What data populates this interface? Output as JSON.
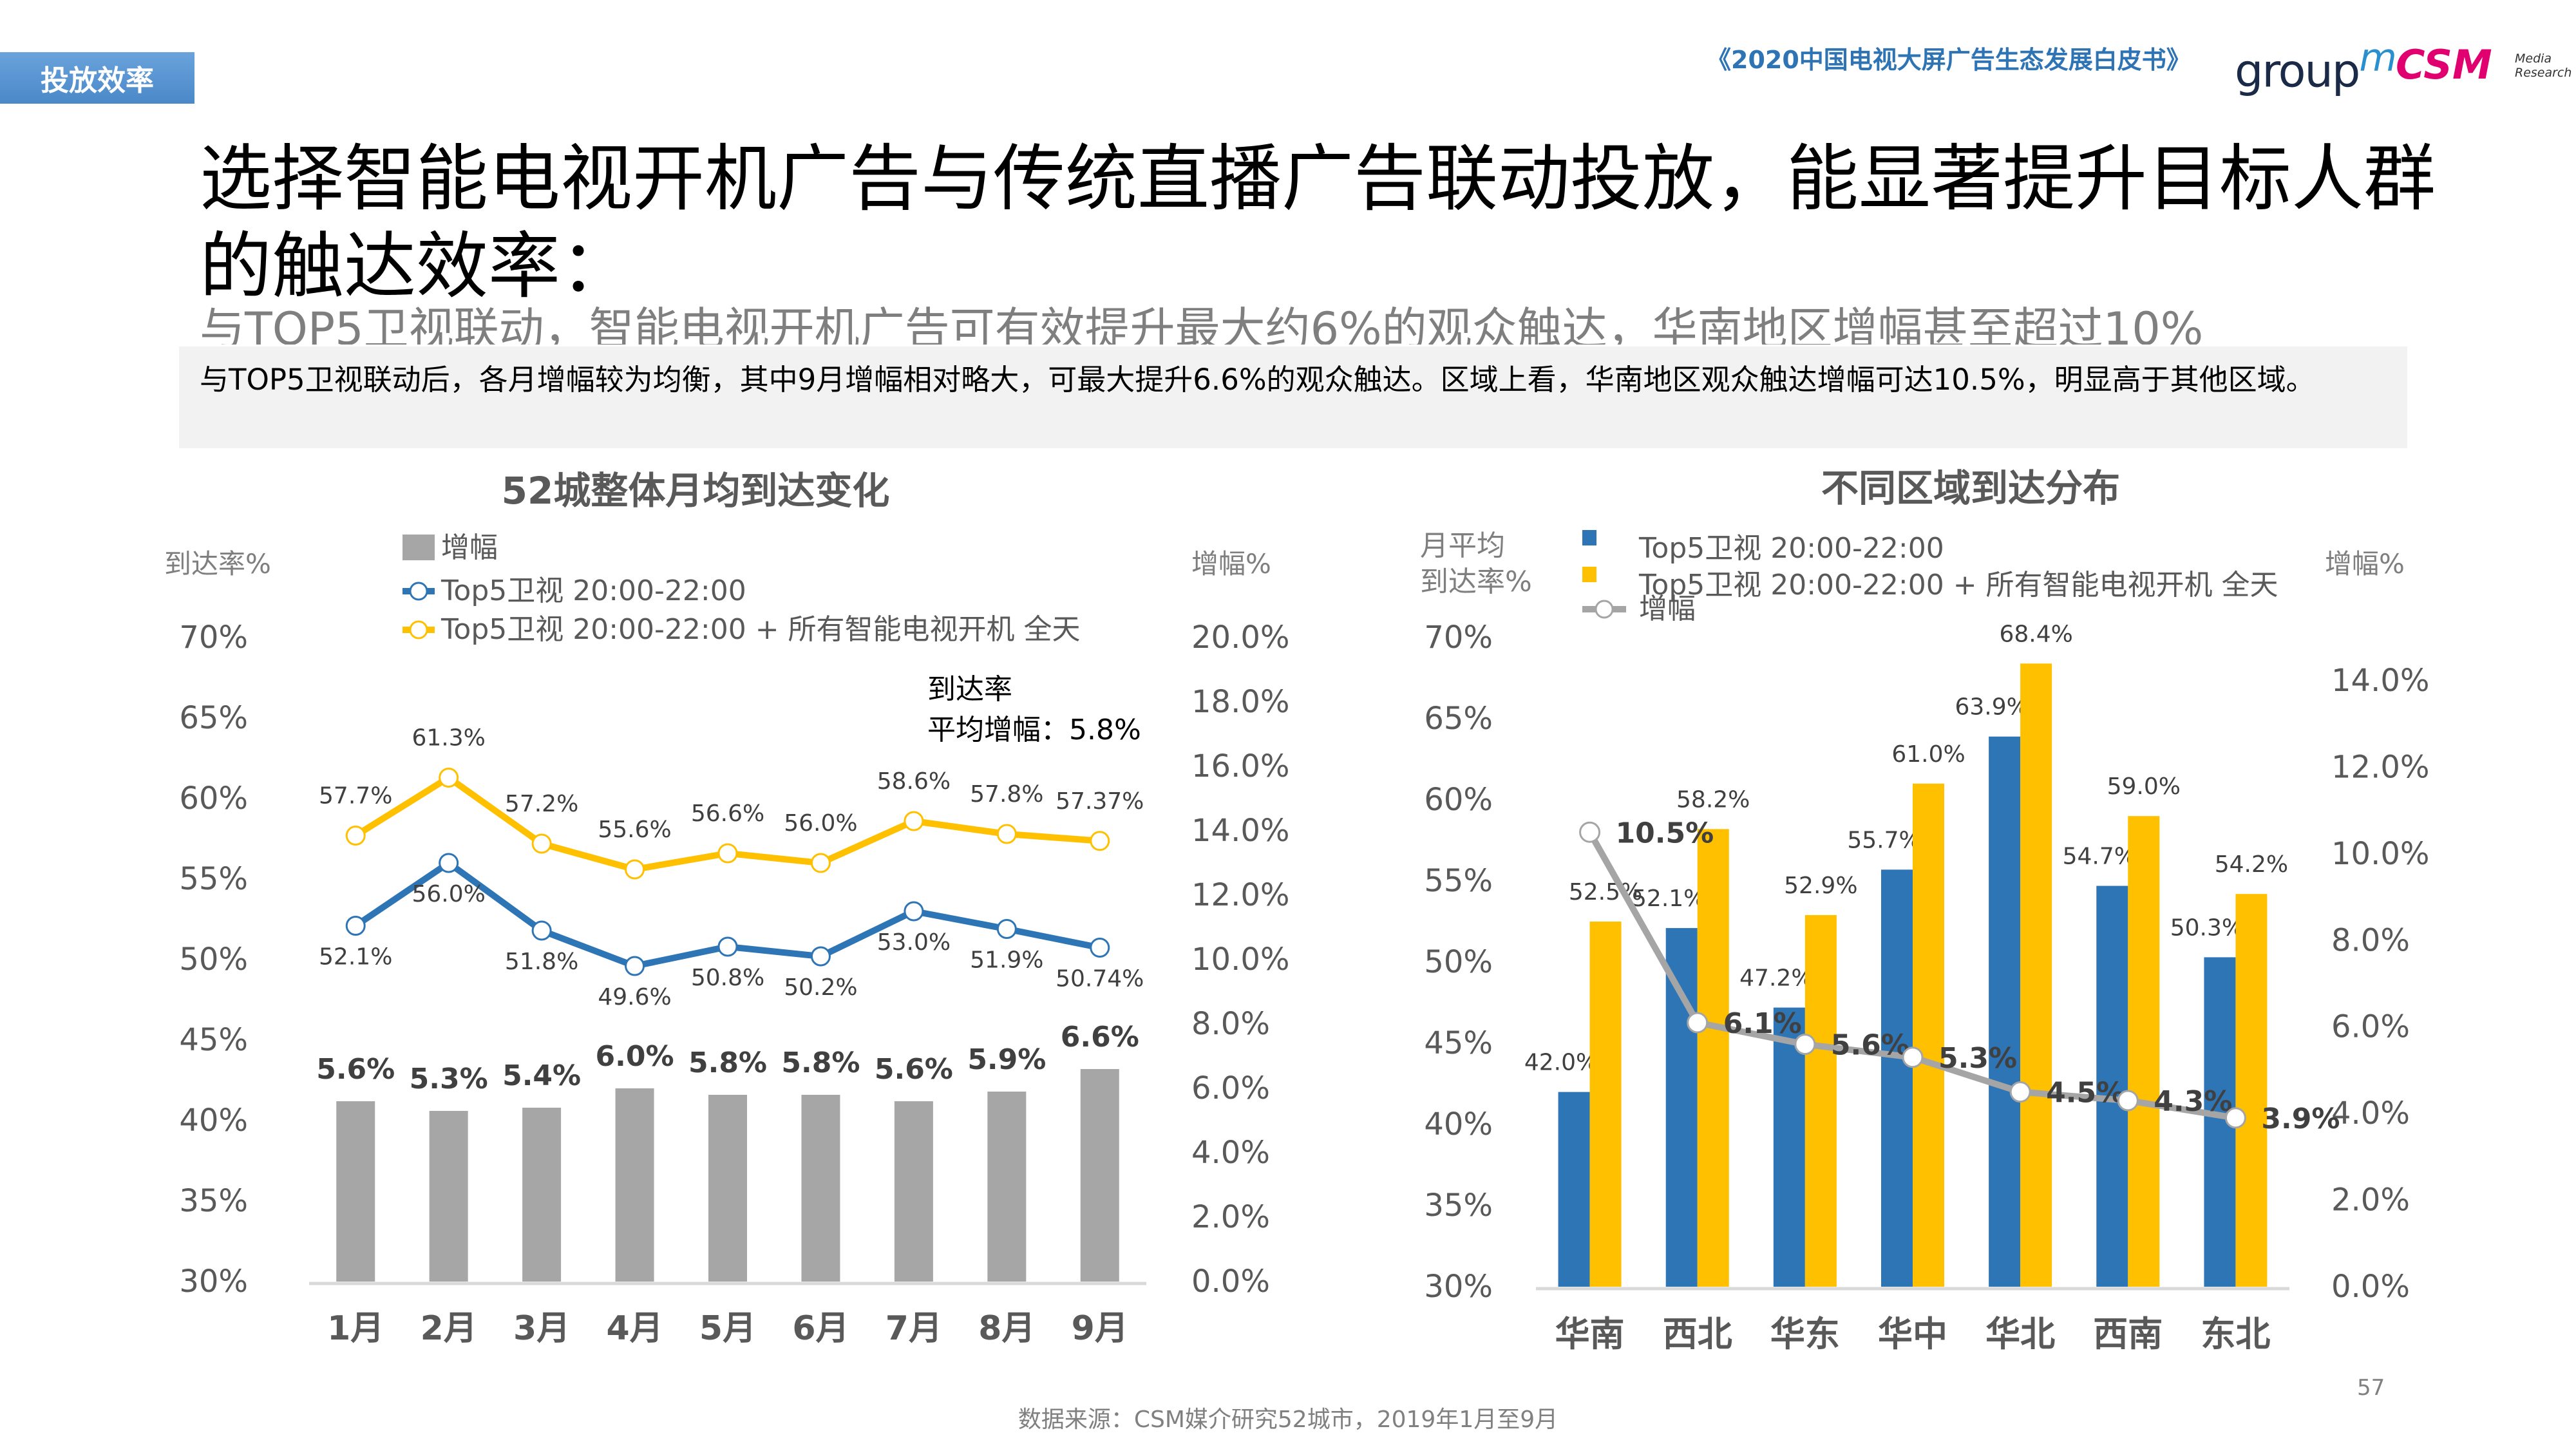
{
  "header": {
    "section_tag": "投放效率",
    "report_title": "《2020中国电视大屏广告生态发展白皮书》",
    "logo_groupm": "group",
    "logo_groupm_sup": "m",
    "logo_csm": "CSM",
    "logo_csm_sub": "Media Research"
  },
  "headline": "选择智能电视开机广告与传统直播广告联动投放，能显著提升目标人群的触达效率：",
  "subheadline": "与TOP5卫视联动，智能电视开机广告可有效提升最大约6%的观众触达，华南地区增幅甚至超过10%",
  "summary": "与TOP5卫视联动后，各月增幅较为均衡，其中9月增幅相对略大，可最大提升6.6%的观众触达。区域上看，华南地区观众触达增幅可达10.5%，明显高于其他区域。",
  "footer": {
    "source": "数据来源：CSM媒介研究52城市，2019年1月至9月",
    "page_number": "57"
  },
  "colors": {
    "blue": "#2e75b6",
    "yellow": "#ffc000",
    "gray_bar": "#a6a6a6",
    "gray_line": "#a5a5a5",
    "axis_text": "#595959",
    "label_text": "#404040"
  },
  "chart_data": [
    {
      "type": "bar+line",
      "title": "52城整体月均到达变化",
      "ylabel_left": "到达率%",
      "ylabel_right": "增幅%",
      "ylim_left": [
        30,
        70
      ],
      "yticks_left": [
        "30%",
        "35%",
        "40%",
        "45%",
        "50%",
        "55%",
        "60%",
        "65%",
        "70%"
      ],
      "ylim_right": [
        0,
        20
      ],
      "yticks_right": [
        "0.0%",
        "2.0%",
        "4.0%",
        "6.0%",
        "8.0%",
        "10.0%",
        "12.0%",
        "14.0%",
        "16.0%",
        "18.0%",
        "20.0%"
      ],
      "categories": [
        "1月",
        "2月",
        "3月",
        "4月",
        "5月",
        "6月",
        "7月",
        "8月",
        "9月"
      ],
      "legend_position": "top-left",
      "grid": false,
      "series": [
        {
          "name": "增幅",
          "kind": "bar",
          "axis": "right",
          "values": [
            5.6,
            5.3,
            5.4,
            6.0,
            5.8,
            5.8,
            5.6,
            5.9,
            6.6
          ],
          "labels": [
            "5.6%",
            "5.3%",
            "5.4%",
            "6.0%",
            "5.8%",
            "5.8%",
            "5.6%",
            "5.9%",
            "6.6%"
          ]
        },
        {
          "name": "Top5卫视 20:00-22:00",
          "kind": "line",
          "axis": "left",
          "values": [
            52.1,
            56.0,
            51.8,
            49.6,
            50.8,
            50.2,
            53.0,
            51.9,
            50.74
          ],
          "labels": [
            "52.1%",
            "56.0%",
            "51.8%",
            "49.6%",
            "50.8%",
            "50.2%",
            "53.0%",
            "51.9%",
            "50.74%"
          ]
        },
        {
          "name": "Top5卫视 20:00-22:00 + 所有智能电视开机 全天",
          "kind": "line",
          "axis": "left",
          "values": [
            57.7,
            61.3,
            57.2,
            55.6,
            56.6,
            56.0,
            58.6,
            57.8,
            57.37
          ],
          "labels": [
            "57.7%",
            "61.3%",
            "57.2%",
            "55.6%",
            "56.6%",
            "56.0%",
            "58.6%",
            "57.8%",
            "57.37%"
          ]
        }
      ],
      "annotation": {
        "line1": "到达率",
        "line2": "平均增幅：5.8%"
      }
    },
    {
      "type": "bar+line",
      "title": "不同区域到达分布",
      "ylabel_left": "月平均\n到达率%",
      "ylabel_left_lines": [
        "月平均",
        "到达率%"
      ],
      "ylabel_right": "增幅%",
      "ylim_left": [
        30,
        70
      ],
      "yticks_left": [
        "30%",
        "35%",
        "40%",
        "45%",
        "50%",
        "55%",
        "60%",
        "65%",
        "70%"
      ],
      "ylim_right": [
        0,
        14
      ],
      "yticks_right": [
        "0.0%",
        "2.0%",
        "4.0%",
        "6.0%",
        "8.0%",
        "10.0%",
        "12.0%",
        "14.0%"
      ],
      "categories": [
        "华南",
        "西北",
        "华东",
        "华中",
        "华北",
        "西南",
        "东北"
      ],
      "legend_position": "top-left",
      "grid": false,
      "series": [
        {
          "name": "Top5卫视 20:00-22:00",
          "kind": "bar",
          "axis": "left",
          "values": [
            42.0,
            52.1,
            47.2,
            55.7,
            63.9,
            54.7,
            50.3
          ],
          "labels": [
            "42.0%",
            "52.1%",
            "47.2%",
            "55.7%",
            "63.9%",
            "54.7%",
            "50.3%"
          ]
        },
        {
          "name": "Top5卫视 20:00-22:00 + 所有智能电视开机 全天",
          "kind": "bar",
          "axis": "left",
          "values": [
            52.5,
            58.2,
            52.9,
            61.0,
            68.4,
            59.0,
            54.2
          ],
          "labels": [
            "52.5%",
            "58.2%",
            "52.9%",
            "61.0%",
            "68.4%",
            "59.0%",
            "54.2%"
          ]
        },
        {
          "name": "增幅",
          "kind": "line",
          "axis": "right",
          "values": [
            10.5,
            6.1,
            5.6,
            5.3,
            4.5,
            4.3,
            3.9
          ],
          "labels": [
            "10.5%",
            "6.1%",
            "5.6%",
            "5.3%",
            "4.5%",
            "4.3%",
            "3.9%"
          ]
        }
      ]
    }
  ]
}
